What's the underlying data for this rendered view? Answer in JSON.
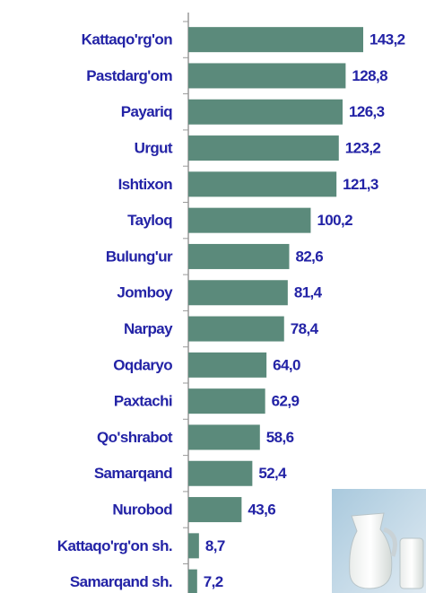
{
  "chart_data": {
    "type": "bar",
    "orientation": "horizontal",
    "categories": [
      "Kattaqo'rg'on",
      "Pastdarg'om",
      "Payariq",
      "Urgut",
      "Ishtixon",
      "Tayloq",
      "Bulung'ur",
      "Jomboy",
      "Narpay",
      "Oqdaryo",
      "Paxtachi",
      "Qo'shrabot",
      "Samarqand",
      "Nurobod",
      "Kattaqo'rg'on sh.",
      "Samarqand sh."
    ],
    "values": [
      143.2,
      128.8,
      126.3,
      123.2,
      121.3,
      100.2,
      82.6,
      81.4,
      78.4,
      64.0,
      62.9,
      58.6,
      52.4,
      43.6,
      8.7,
      7.2
    ],
    "value_labels": [
      "143,2",
      "128,8",
      "126,3",
      "123,2",
      "121,3",
      "100,2",
      "82,6",
      "81,4",
      "78,4",
      "64,0",
      "62,9",
      "58,6",
      "52,4",
      "43,6",
      "8,7",
      "7,2"
    ],
    "color": "#5b8a7b"
  }
}
